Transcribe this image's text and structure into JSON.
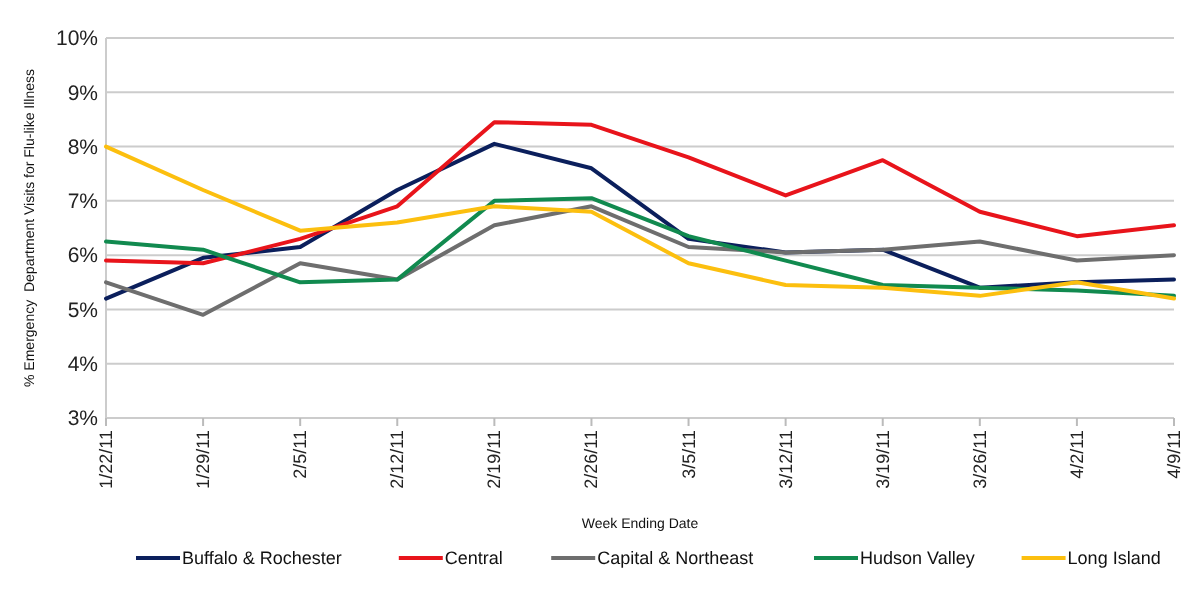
{
  "chart_data": {
    "type": "line",
    "xlabel": "Week Ending Date",
    "ylabel": "% Emergency  Department Visits for Flu-like Illness",
    "categories": [
      "1/22/11",
      "1/29/11",
      "2/5/11",
      "2/12/11",
      "2/19/11",
      "2/26/11",
      "3/5/11",
      "3/12/11",
      "3/19/11",
      "3/26/11",
      "4/2/11",
      "4/9/11"
    ],
    "series": [
      {
        "name": "Buffalo & Rochester",
        "color": "#0b1f5c",
        "values": [
          5.2,
          5.95,
          6.15,
          7.2,
          8.05,
          7.6,
          6.3,
          6.05,
          6.1,
          5.4,
          5.5,
          5.55
        ]
      },
      {
        "name": "Central",
        "color": "#e8141b",
        "values": [
          5.9,
          5.85,
          6.3,
          6.9,
          8.45,
          8.4,
          7.8,
          7.1,
          7.75,
          6.8,
          6.35,
          6.55
        ]
      },
      {
        "name": "Capital & Northeast",
        "color": "#6e6e6e",
        "values": [
          5.5,
          4.9,
          5.85,
          5.55,
          6.55,
          6.9,
          6.15,
          6.05,
          6.1,
          6.25,
          5.9,
          6.0
        ]
      },
      {
        "name": "Hudson Valley",
        "color": "#118a4f",
        "values": [
          6.25,
          6.1,
          5.5,
          5.55,
          7.0,
          7.05,
          6.35,
          5.9,
          5.45,
          5.4,
          5.35,
          5.25
        ]
      },
      {
        "name": "Long Island",
        "color": "#fcbf0f",
        "values": [
          8.0,
          7.2,
          6.45,
          6.6,
          6.9,
          6.8,
          5.85,
          5.45,
          5.4,
          5.25,
          5.5,
          5.2
        ]
      }
    ],
    "ylim": [
      3,
      10
    ],
    "yticks": [
      {
        "value": 3,
        "label": "3%"
      },
      {
        "value": 4,
        "label": "4%"
      },
      {
        "value": 5,
        "label": "5%"
      },
      {
        "value": 6,
        "label": "6%"
      },
      {
        "value": 7,
        "label": "7%"
      },
      {
        "value": 8,
        "label": "8%"
      },
      {
        "value": 9,
        "label": "9%"
      },
      {
        "value": 10,
        "label": "10%"
      }
    ],
    "grid": "y",
    "legend": "bottom",
    "marker": "none",
    "line_style": "solid"
  }
}
